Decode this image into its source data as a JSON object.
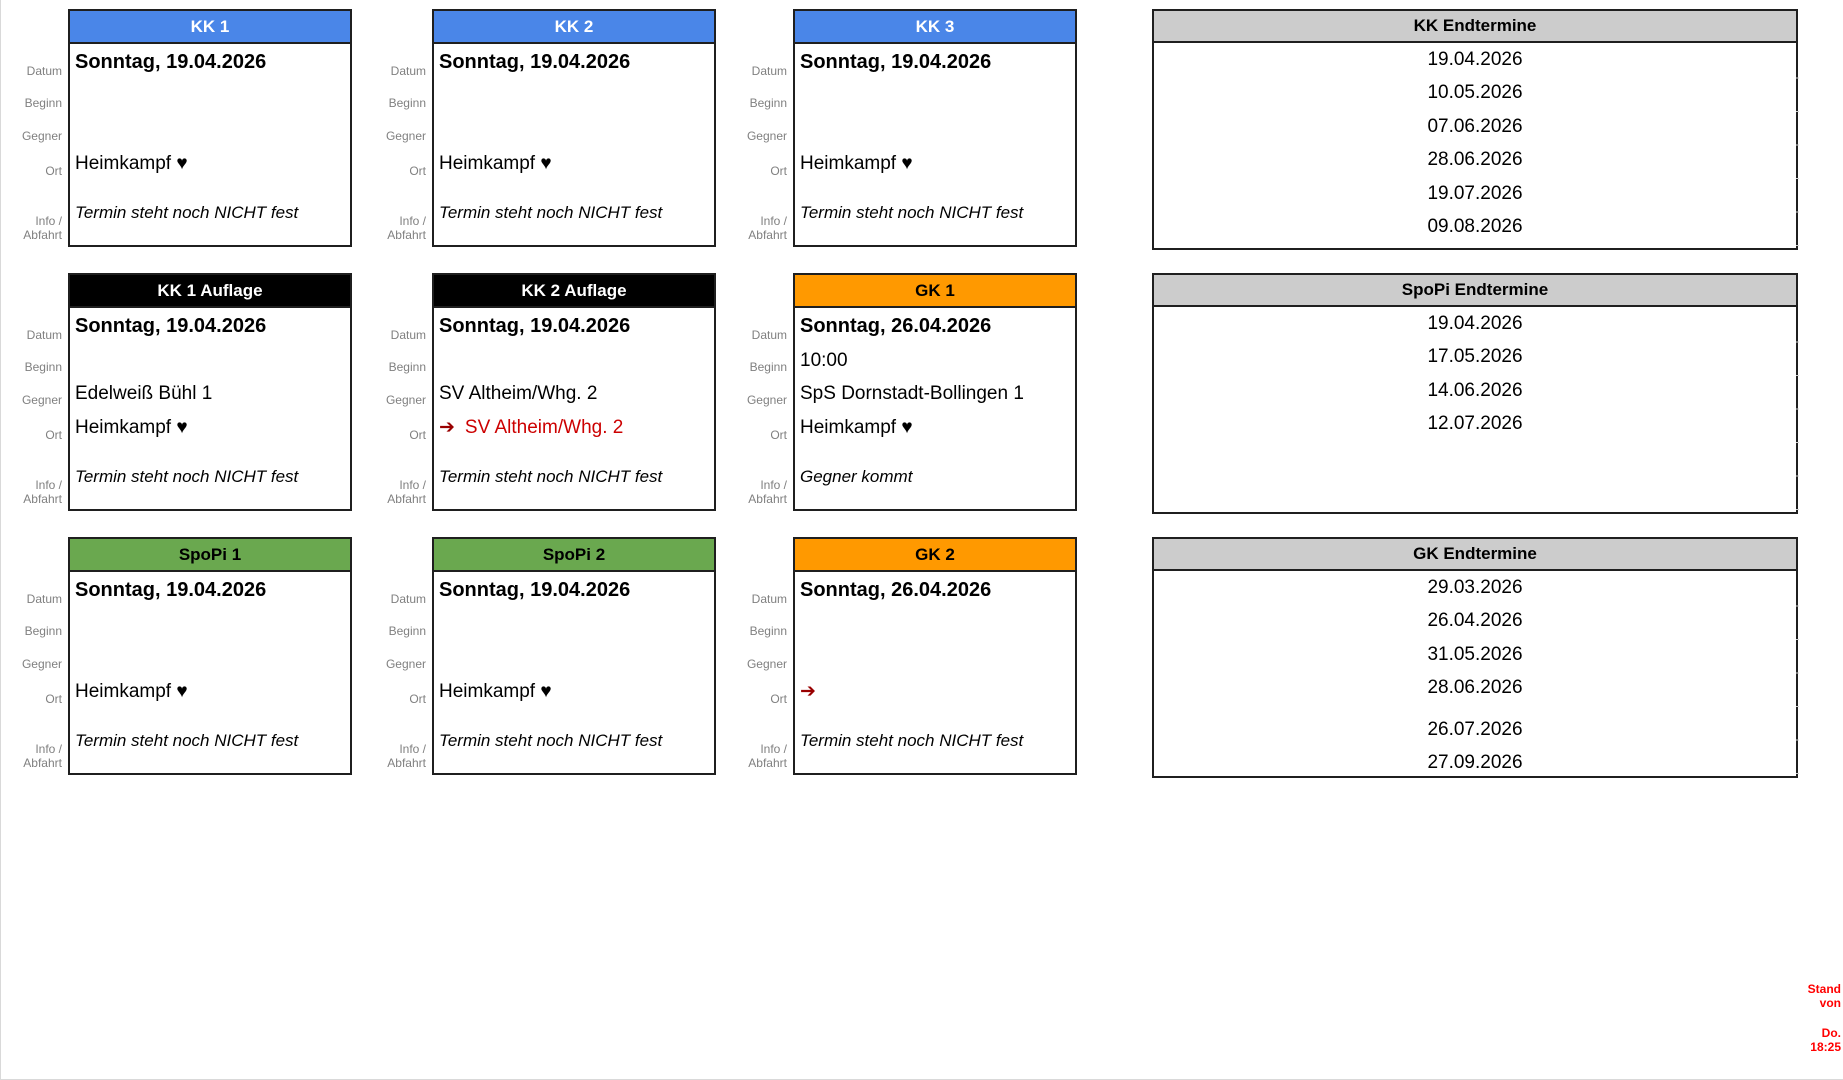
{
  "row_labels": {
    "datum": "Datum",
    "beginn": "Beginn",
    "gegner": "Gegner",
    "ort": "Ort",
    "info_line1": "Info /",
    "info_line2": "Abfahrt"
  },
  "icons": {
    "arrow_right": "➔",
    "heart": "♥"
  },
  "colors": {
    "blue_header": "#4a86e8",
    "black_header": "#000000",
    "orange_header": "#ff9900",
    "green_header": "#6aa84f",
    "gray_table_header": "#cccccc",
    "border": "#1f1f1f",
    "label_gray": "#808080",
    "arrow_red": "#990000",
    "ort_red": "#cc0000",
    "note_red": "#ff0000"
  },
  "cards": [
    {
      "title": "KK 1",
      "header_bg": "#4a86e8",
      "header_fg": "#ffffff",
      "datum": "Sonntag, 19.04.2026",
      "beginn": "",
      "gegner": "",
      "ort": "Heimkampf ♥",
      "ort_has_arrow": false,
      "ort_is_red": false,
      "info": "Termin steht noch NICHT fest"
    },
    {
      "title": "KK 2",
      "header_bg": "#4a86e8",
      "header_fg": "#ffffff",
      "datum": "Sonntag, 19.04.2026",
      "beginn": "",
      "gegner": "",
      "ort": "Heimkampf ♥",
      "ort_has_arrow": false,
      "ort_is_red": false,
      "info": "Termin steht noch NICHT fest"
    },
    {
      "title": "KK 3",
      "header_bg": "#4a86e8",
      "header_fg": "#ffffff",
      "datum": "Sonntag, 19.04.2026",
      "beginn": "",
      "gegner": "",
      "ort": "Heimkampf ♥",
      "ort_has_arrow": false,
      "ort_is_red": false,
      "info": "Termin steht noch NICHT fest"
    },
    {
      "title": "KK 1 Auflage",
      "header_bg": "#000000",
      "header_fg": "#ffffff",
      "datum": "Sonntag, 19.04.2026",
      "beginn": "",
      "gegner": "Edelweiß Bühl 1",
      "ort": "Heimkampf ♥",
      "ort_has_arrow": false,
      "ort_is_red": false,
      "info": "Termin steht noch NICHT fest"
    },
    {
      "title": "KK 2 Auflage",
      "header_bg": "#000000",
      "header_fg": "#ffffff",
      "datum": "Sonntag, 19.04.2026",
      "beginn": "",
      "gegner": "SV Altheim/Whg. 2",
      "ort": "SV Altheim/Whg. 2",
      "ort_has_arrow": true,
      "ort_is_red": true,
      "info": "Termin steht noch NICHT fest"
    },
    {
      "title": "GK 1",
      "header_bg": "#ff9900",
      "header_fg": "#000000",
      "datum": "Sonntag, 26.04.2026",
      "beginn": "10:00",
      "gegner": "SpS Dornstadt-Bollingen 1",
      "ort": "Heimkampf ♥",
      "ort_has_arrow": false,
      "ort_is_red": false,
      "info": "Gegner kommt"
    },
    {
      "title": "SpoPi 1",
      "header_bg": "#6aa84f",
      "header_fg": "#000000",
      "datum": "Sonntag, 19.04.2026",
      "beginn": "",
      "gegner": "",
      "ort": "Heimkampf ♥",
      "ort_has_arrow": false,
      "ort_is_red": false,
      "info": "Termin steht noch NICHT fest"
    },
    {
      "title": "SpoPi 2",
      "header_bg": "#6aa84f",
      "header_fg": "#000000",
      "datum": "Sonntag, 19.04.2026",
      "beginn": "",
      "gegner": "",
      "ort": "Heimkampf ♥",
      "ort_has_arrow": false,
      "ort_is_red": false,
      "info": "Termin steht noch NICHT fest"
    },
    {
      "title": "GK 2",
      "header_bg": "#ff9900",
      "header_fg": "#000000",
      "datum": "Sonntag, 26.04.2026",
      "beginn": "",
      "gegner": "",
      "ort": "",
      "ort_has_arrow": true,
      "ort_is_red": false,
      "info": "Termin steht noch NICHT fest"
    }
  ],
  "tables": [
    {
      "title": "KK Endtermine",
      "dates": [
        "19.04.2026",
        "10.05.2026",
        "07.06.2026",
        "28.06.2026",
        "19.07.2026",
        "09.08.2026"
      ],
      "spacer_after": -1
    },
    {
      "title": "SpoPi Endtermine",
      "dates": [
        "19.04.2026",
        "17.05.2026",
        "14.06.2026",
        "12.07.2026"
      ],
      "spacer_after": -1
    },
    {
      "title": "GK Endtermine",
      "dates": [
        "29.03.2026",
        "26.04.2026",
        "31.05.2026",
        "28.06.2026",
        "26.07.2026",
        "27.09.2026"
      ],
      "spacer_after": 3
    }
  ],
  "status_note": {
    "text_line1": "Stand von",
    "text_line2": "Do. 18:25",
    "color": "#ff0000"
  }
}
